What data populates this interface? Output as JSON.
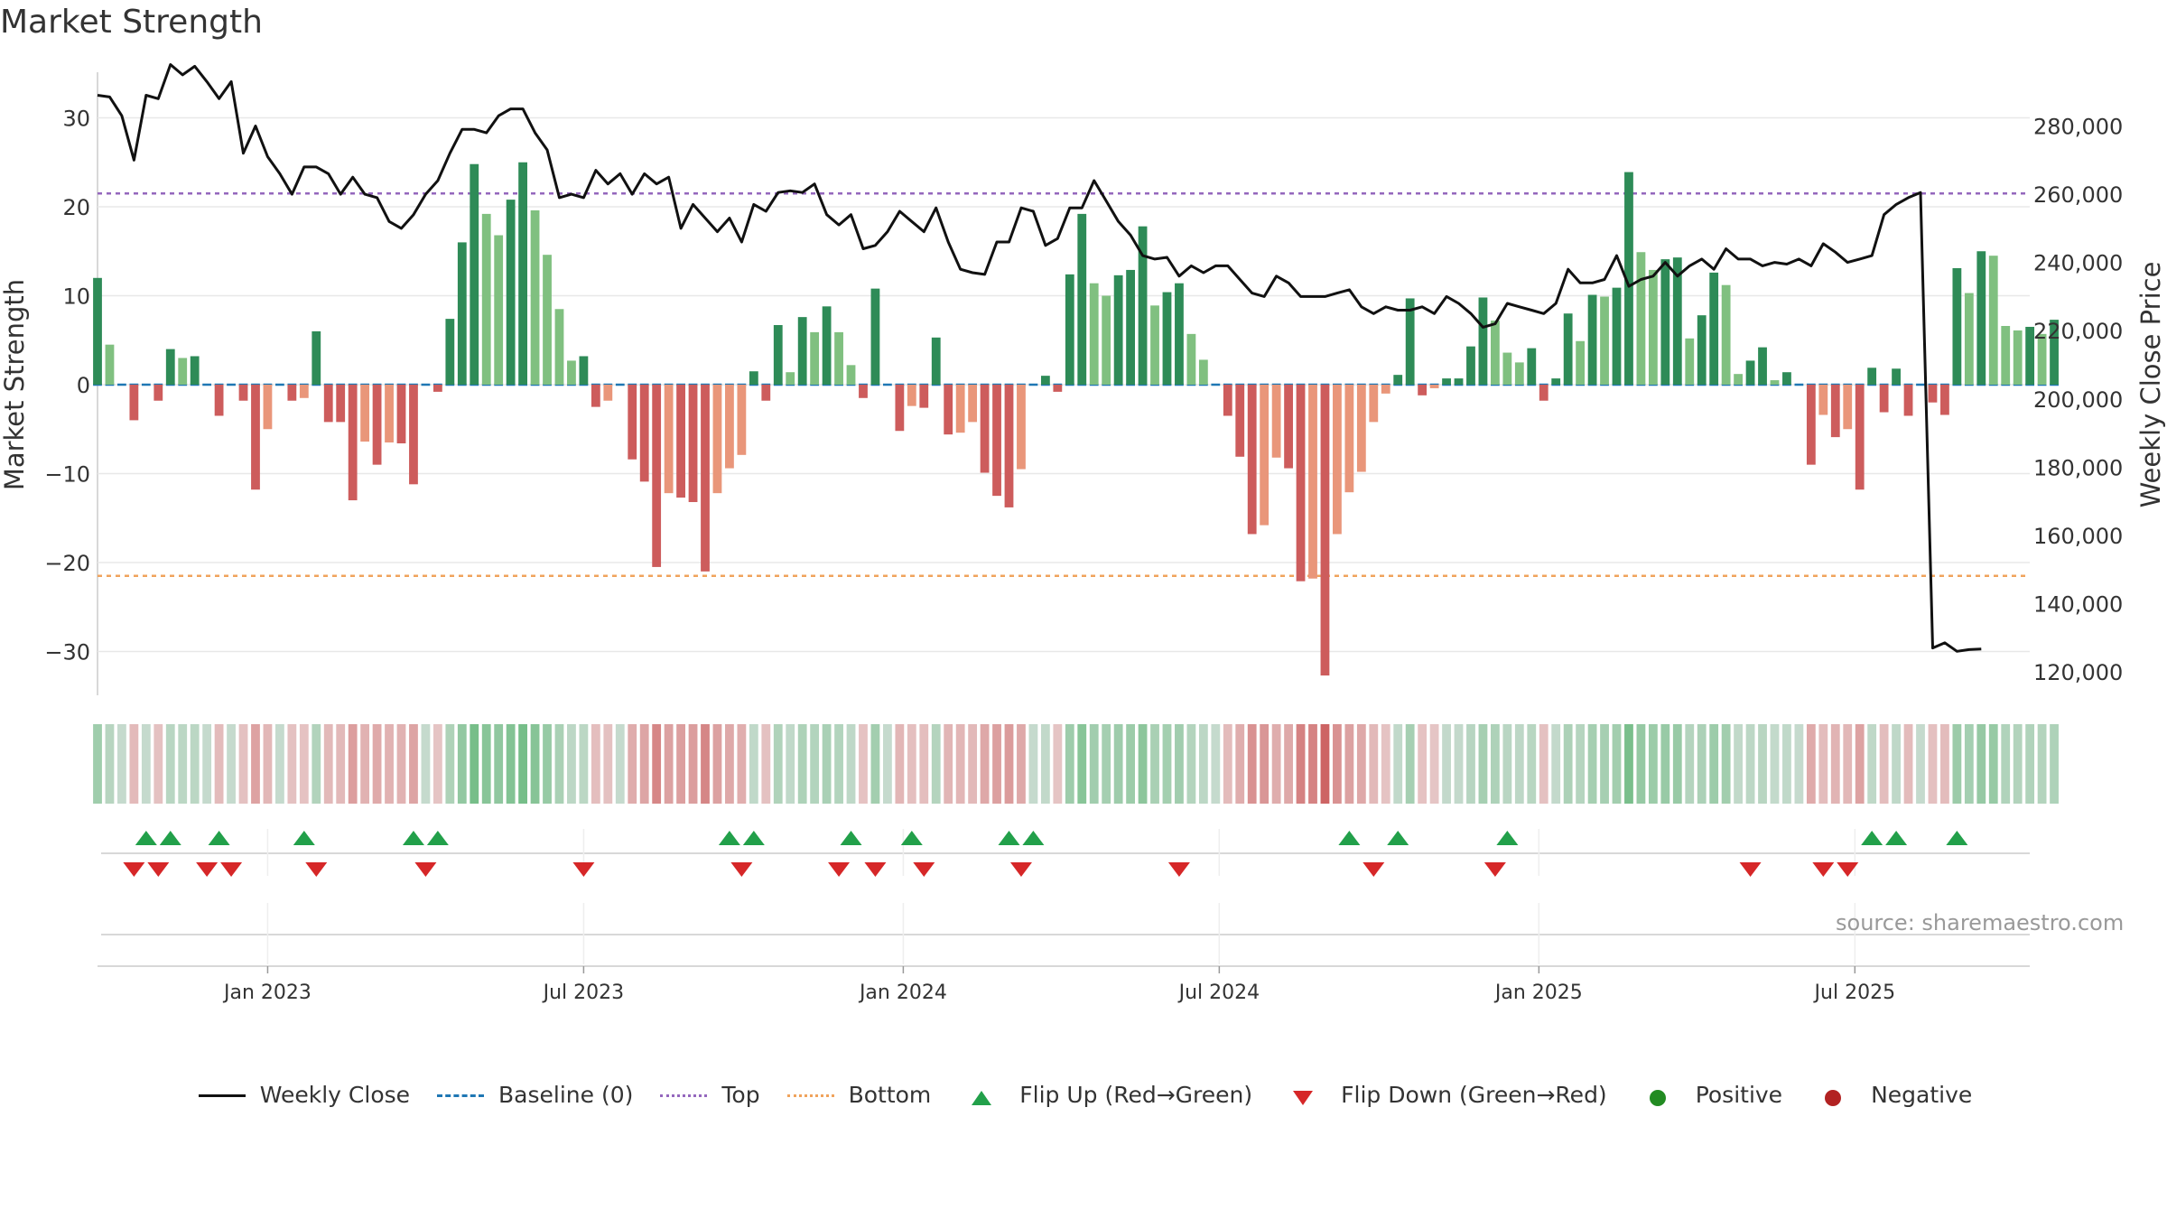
{
  "title": "Market Strength",
  "source": "source: sharemaestro.com",
  "colors": {
    "strong_green": "#2e8b57",
    "light_green": "#80c080",
    "strong_red": "#cd5c5c",
    "light_red": "#e9967a",
    "close_line": "#111111",
    "baseline": "#1f77b4",
    "top_line": "#9467bd",
    "bottom_line": "#f0a35c",
    "flip_up": "#22a04a",
    "flip_down": "#d62728",
    "positive": "#228b22",
    "negative": "#b22222"
  },
  "chart_data": {
    "type": "bar",
    "title": "Market Strength",
    "ylabel": "Market Strength",
    "y2label": "Weekly Close Price",
    "ylim": [
      -35,
      35
    ],
    "y2lim": [
      113000,
      300000
    ],
    "yticks": [
      30,
      20,
      10,
      0,
      -10,
      -20,
      -30
    ],
    "ytick_labels": [
      "30",
      "20",
      "10",
      "0",
      "−10",
      "−20",
      "−30"
    ],
    "y2ticks": [
      280000,
      260000,
      240000,
      220000,
      200000,
      180000,
      160000,
      140000,
      120000
    ],
    "y2tick_labels": [
      "280,000",
      "260,000",
      "240,000",
      "220,000",
      "200,000",
      "180,000",
      "160,000",
      "140,000",
      "120,000"
    ],
    "xticks": [
      "Jan 2023",
      "Jul 2023",
      "Jan 2024",
      "Jul 2024",
      "Jan 2025",
      "Jul 2025"
    ],
    "xtick_weeks": [
      14,
      40,
      66.3,
      92.3,
      118.6,
      144.6
    ],
    "top_level": 21.5,
    "bottom_level": -21.5,
    "baseline": 0,
    "grid": true,
    "legend_position": "bottom",
    "strength": [
      12,
      4.5,
      0,
      -4,
      0,
      -1.8,
      4,
      3,
      3.2,
      0,
      -3.5,
      0,
      -1.8,
      -11.8,
      -5,
      0,
      -1.8,
      -1.5,
      6,
      -4.2,
      -4.2,
      -13,
      -6.4,
      -9,
      -6.5,
      -6.6,
      -11.2,
      0,
      -0.8,
      7.4,
      16,
      24.8,
      19.2,
      16.8,
      20.8,
      25,
      19.6,
      14.6,
      8.5,
      2.7,
      3.2,
      -2.5,
      -1.8,
      0,
      -8.4,
      -10.9,
      -20.5,
      -12.2,
      -12.7,
      -13.2,
      -21,
      -12.2,
      -9.4,
      -7.9,
      1.5,
      -1.8,
      6.7,
      1.4,
      7.6,
      5.9,
      8.8,
      5.9,
      2.2,
      -1.5,
      10.8,
      0,
      -5.2,
      -2.4,
      -2.6,
      5.3,
      -5.6,
      -5.4,
      -4.2,
      -9.9,
      -12.5,
      -13.8,
      -9.5,
      0,
      1,
      -0.8,
      12.4,
      19.2,
      11.4,
      10,
      12.3,
      12.9,
      17.8,
      8.9,
      10.4,
      11.4,
      5.7,
      2.8,
      0,
      -3.5,
      -8.1,
      -16.8,
      -15.8,
      -8.2,
      -9.4,
      -22.1,
      -21.8,
      -32.7,
      -16.8,
      -12.1,
      -9.8,
      -4.2,
      -1,
      1.1,
      9.7,
      -1.2,
      -0.4,
      0.7,
      0.7,
      4.3,
      9.8,
      7.2,
      3.6,
      2.5,
      4.1,
      -1.8,
      0.7,
      8,
      4.9,
      10.1,
      9.9,
      10.9,
      23.9,
      14.9,
      12.9,
      14.1,
      14.3,
      5.2,
      7.8,
      12.6,
      11.2,
      1.2,
      2.7,
      4.2,
      0.5,
      1.4,
      0,
      -9,
      -3.4,
      -5.9,
      -5,
      -11.8,
      1.9,
      -3.1,
      1.8,
      -3.5,
      0,
      -2,
      -3.4,
      13.1,
      10.3,
      15,
      14.5,
      6.6,
      6.1,
      6.5,
      5.7,
      7.3
    ],
    "weekly_close": [
      289000,
      288500,
      283000,
      270000,
      289000,
      288000,
      298000,
      295000,
      297500,
      293000,
      288000,
      293000,
      272000,
      280000,
      271000,
      266000,
      260000,
      268000,
      268000,
      266000,
      260000,
      265000,
      260000,
      259000,
      252000,
      250000,
      254000,
      260000,
      264000,
      272000,
      279000,
      279000,
      278000,
      283000,
      285000,
      285000,
      278000,
      273000,
      259000,
      260000,
      259000,
      267000,
      263000,
      266000,
      260000,
      266000,
      263000,
      265000,
      250000,
      257000,
      253000,
      249000,
      253000,
      246000,
      257000,
      255000,
      260500,
      261000,
      260500,
      263000,
      254000,
      251000,
      254000,
      244000,
      245000,
      249000,
      255000,
      252000,
      249000,
      256000,
      246000,
      238000,
      237000,
      236500,
      246000,
      246000,
      256000,
      255000,
      245000,
      247000,
      256000,
      256000,
      264000,
      258000,
      252000,
      248000,
      242000,
      241000,
      241500,
      236000,
      239000,
      237000,
      239000,
      239000,
      235000,
      231000,
      230000,
      236000,
      234000,
      230000,
      230000,
      230000,
      231000,
      232000,
      227000,
      225000,
      227000,
      226000,
      226000,
      227000,
      225000,
      230000,
      228000,
      225000,
      221000,
      222000,
      228000,
      227000,
      226000,
      225000,
      228000,
      238000,
      234000,
      234000,
      235000,
      242000,
      233000,
      235000,
      236000,
      240000,
      236000,
      239000,
      241000,
      238000,
      244000,
      241000,
      241000,
      239000,
      240000,
      239500,
      241000,
      239000,
      245500,
      243000,
      240000,
      241000,
      242000,
      254000,
      257000,
      259000,
      260500,
      127000,
      128500,
      126000,
      126500,
      126700
    ],
    "status": "PPPNPNPPPPNPNNNPNNPNNNNNNNNPNPPPPPPPPPPPNNPNNNNNNNNNNPNPPPPPPPNPPNNNPNNNNNNNPPNPPPPPPPPPPPPPNNNNNNNNNNNNNNPPNNPPPPPPPPNPPPPPPPPPPPPPPPPPPPPPPNNNNNPNPNPNNPPPPPPPPP",
    "flip_up_weeks": [
      4,
      6,
      10,
      17,
      26,
      28,
      52,
      54,
      62,
      67,
      75,
      77,
      103,
      107,
      116,
      146,
      148,
      153
    ],
    "flip_down_weeks": [
      3,
      5,
      9,
      11,
      18,
      27,
      40,
      53,
      61,
      64,
      68,
      76,
      89,
      105,
      115,
      136,
      142,
      144
    ]
  },
  "legend": {
    "weekly_close": "Weekly Close",
    "baseline": "Baseline (0)",
    "top": "Top",
    "bottom": "Bottom",
    "flip_up": "Flip Up (Red→Green)",
    "flip_down": "Flip Down (Green→Red)",
    "positive": "Positive",
    "negative": "Negative"
  }
}
